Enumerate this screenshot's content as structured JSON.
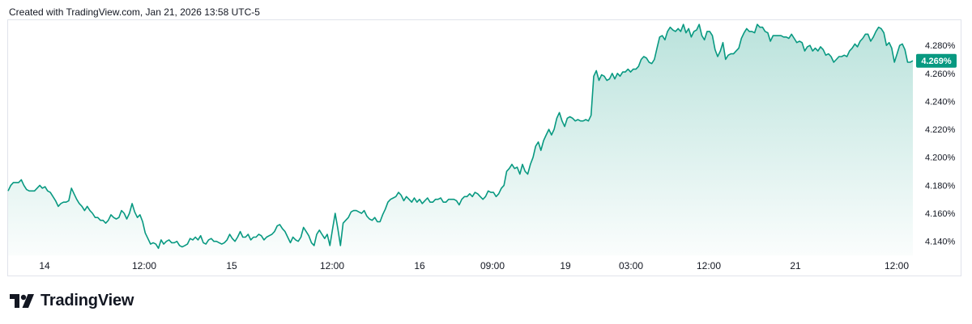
{
  "header": {
    "caption": "Created with TradingView.com, Jan 21, 2026 13:58 UTC-5"
  },
  "footer": {
    "brand_name": "TradingView"
  },
  "colors": {
    "line": "#089981",
    "badge": "#089981",
    "area_top": "rgba(8,153,129,0.28)",
    "area_bottom": "rgba(8,153,129,0.02)"
  },
  "chart_data": {
    "type": "area",
    "title": "",
    "xlabel": "",
    "ylabel": "",
    "y_unit": "%",
    "ylim": [
      4.13,
      4.298
    ],
    "y_ticks": [
      "4.140%",
      "4.160%",
      "4.180%",
      "4.200%",
      "4.220%",
      "4.240%",
      "4.260%",
      "4.280%"
    ],
    "x_ticks": [
      "14",
      "12:00",
      "15",
      "12:00",
      "16",
      "09:00",
      "19",
      "03:00",
      "12:00",
      "21",
      "12:00"
    ],
    "last_value_label": "4.269%",
    "series": [
      {
        "values": [
          4.176,
          4.18,
          4.182,
          4.182,
          4.182,
          4.184,
          4.18,
          4.177,
          4.176,
          4.176,
          4.176,
          4.178,
          4.18,
          4.178,
          4.179,
          4.176,
          4.175,
          4.172,
          4.169,
          4.165,
          4.167,
          4.168,
          4.168,
          4.169,
          4.178,
          4.174,
          4.17,
          4.167,
          4.165,
          4.162,
          4.165,
          4.162,
          4.16,
          4.157,
          4.157,
          4.155,
          4.155,
          4.153,
          4.155,
          4.159,
          4.157,
          4.156,
          4.157,
          4.162,
          4.16,
          4.156,
          4.16,
          4.167,
          4.161,
          4.157,
          4.159,
          4.154,
          4.146,
          4.142,
          4.138,
          4.139,
          4.138,
          4.135,
          4.141,
          4.138,
          4.14,
          4.141,
          4.139,
          4.139,
          4.14,
          4.137,
          4.136,
          4.137,
          4.138,
          4.142,
          4.141,
          4.143,
          4.141,
          4.144,
          4.139,
          4.138,
          4.141,
          4.142,
          4.14,
          4.14,
          4.139,
          4.138,
          4.139,
          4.141,
          4.145,
          4.142,
          4.14,
          4.143,
          4.147,
          4.143,
          4.143,
          4.145,
          4.141,
          4.143,
          4.143,
          4.145,
          4.144,
          4.141,
          4.143,
          4.144,
          4.145,
          4.147,
          4.151,
          4.152,
          4.149,
          4.147,
          4.143,
          4.139,
          4.143,
          4.141,
          4.14,
          4.143,
          4.15,
          4.147,
          4.144,
          4.139,
          4.137,
          4.145,
          4.148,
          4.145,
          4.142,
          4.145,
          4.137,
          4.149,
          4.16,
          4.149,
          4.137,
          4.153,
          4.155,
          4.157,
          4.161,
          4.162,
          4.162,
          4.161,
          4.16,
          4.162,
          4.158,
          4.156,
          4.155,
          4.157,
          4.154,
          4.154,
          4.159,
          4.163,
          4.168,
          4.17,
          4.171,
          4.172,
          4.175,
          4.173,
          4.169,
          4.172,
          4.17,
          4.168,
          4.171,
          4.168,
          4.17,
          4.167,
          4.169,
          4.171,
          4.168,
          4.168,
          4.17,
          4.17,
          4.171,
          4.168,
          4.168,
          4.17,
          4.17,
          4.17,
          4.169,
          4.166,
          4.17,
          4.172,
          4.172,
          4.174,
          4.172,
          4.175,
          4.174,
          4.172,
          4.17,
          4.172,
          4.176,
          4.175,
          4.175,
          4.172,
          4.174,
          4.178,
          4.18,
          4.19,
          4.192,
          4.195,
          4.192,
          4.193,
          4.188,
          4.195,
          4.19,
          4.188,
          4.195,
          4.2,
          4.208,
          4.211,
          4.205,
          4.212,
          4.216,
          4.22,
          4.216,
          4.22,
          4.228,
          4.232,
          4.226,
          4.222,
          4.228,
          4.229,
          4.228,
          4.226,
          4.227,
          4.226,
          4.226,
          4.227,
          4.226,
          4.23,
          4.258,
          4.262,
          4.255,
          4.259,
          4.258,
          4.255,
          4.256,
          4.26,
          4.256,
          4.26,
          4.258,
          4.261,
          4.261,
          4.263,
          4.261,
          4.263,
          4.263,
          4.265,
          4.27,
          4.272,
          4.271,
          4.268,
          4.267,
          4.27,
          4.278,
          4.286,
          4.287,
          4.284,
          4.29,
          4.293,
          4.291,
          4.29,
          4.292,
          4.29,
          4.295,
          4.289,
          4.292,
          4.286,
          4.29,
          4.291,
          4.295,
          4.287,
          4.284,
          4.29,
          4.29,
          4.287,
          4.277,
          4.272,
          4.276,
          4.282,
          4.27,
          4.273,
          4.274,
          4.274,
          4.276,
          4.278,
          4.285,
          4.289,
          4.292,
          4.29,
          4.29,
          4.289,
          4.295,
          4.293,
          4.293,
          4.29,
          4.289,
          4.283,
          4.287,
          4.287,
          4.287,
          4.287,
          4.286,
          4.286,
          4.285,
          4.288,
          4.285,
          4.282,
          4.283,
          4.282,
          4.276,
          4.279,
          4.28,
          4.276,
          4.278,
          4.276,
          4.279,
          4.277,
          4.273,
          4.274,
          4.272,
          4.268,
          4.27,
          4.272,
          4.272,
          4.273,
          4.272,
          4.276,
          4.278,
          4.281,
          4.279,
          4.283,
          4.285,
          4.288,
          4.288,
          4.283,
          4.286,
          4.29,
          4.293,
          4.292,
          4.289,
          4.28,
          4.282,
          4.278,
          4.268,
          4.274,
          4.28,
          4.281,
          4.277,
          4.268,
          4.268,
          4.269
        ]
      }
    ]
  }
}
